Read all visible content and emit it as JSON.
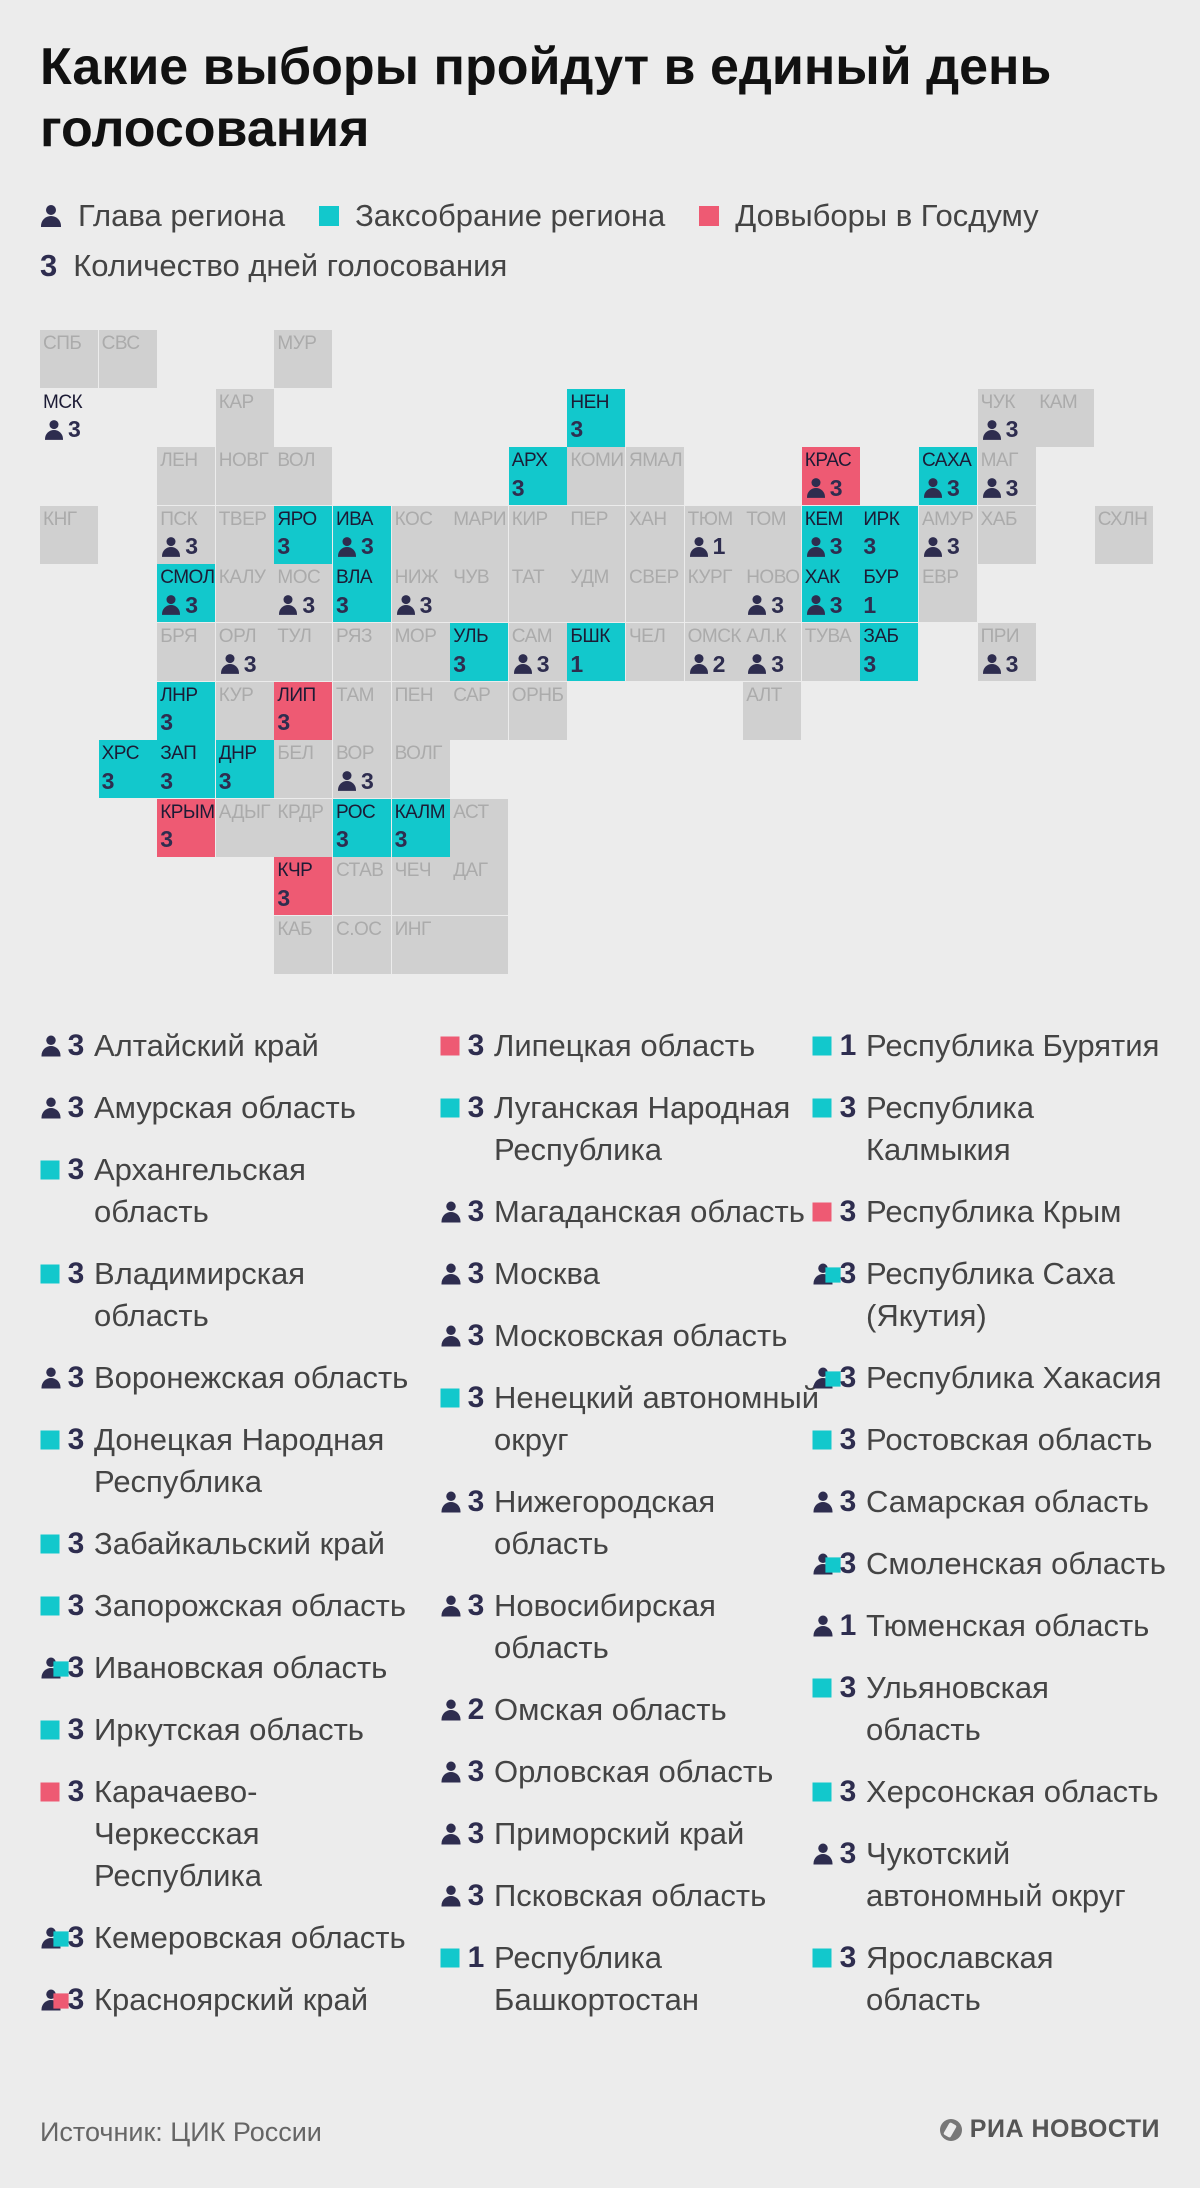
{
  "title": "Какие выборы пройдут в единый день голосования",
  "legend": {
    "head": "Глава региона",
    "assembly": "Заксобрание региона",
    "duma": "Довыборы в Госдуму",
    "days_symbol": "3",
    "days": "Количество дней голосования"
  },
  "colors": {
    "assembly": "#12c8cc",
    "duma": "#ee5a73",
    "grey": "#d0d0d0",
    "dark": "#2e2d4f"
  },
  "map_cells": [
    {
      "col": 0,
      "row": 0,
      "abbr": "СПБ",
      "type": "grey"
    },
    {
      "col": 1,
      "row": 0,
      "abbr": "СВС",
      "type": "grey"
    },
    {
      "col": 4,
      "row": 0,
      "abbr": "МУР",
      "type": "grey"
    },
    {
      "col": 0,
      "row": 1,
      "abbr": "МСК",
      "type": "none",
      "head": true,
      "days": "3"
    },
    {
      "col": 3,
      "row": 1,
      "abbr": "КАР",
      "type": "grey"
    },
    {
      "col": 9,
      "row": 1,
      "abbr": "НЕН",
      "type": "teal",
      "days": "3"
    },
    {
      "col": 16,
      "row": 1,
      "abbr": "ЧУК",
      "type": "grey",
      "head": true,
      "days": "3"
    },
    {
      "col": 17,
      "row": 1,
      "abbr": "КАМ",
      "type": "grey"
    },
    {
      "col": 2,
      "row": 2,
      "abbr": "ЛЕН",
      "type": "grey"
    },
    {
      "col": 3,
      "row": 2,
      "abbr": "НОВГ",
      "type": "grey"
    },
    {
      "col": 4,
      "row": 2,
      "abbr": "ВОЛ",
      "type": "grey"
    },
    {
      "col": 8,
      "row": 2,
      "abbr": "АРХ",
      "type": "teal",
      "days": "3"
    },
    {
      "col": 9,
      "row": 2,
      "abbr": "КОМИ",
      "type": "grey"
    },
    {
      "col": 10,
      "row": 2,
      "abbr": "ЯМАЛ",
      "type": "grey"
    },
    {
      "col": 13,
      "row": 2,
      "abbr": "КРАС",
      "type": "red",
      "head": true,
      "days": "3"
    },
    {
      "col": 15,
      "row": 2,
      "abbr": "САХА",
      "type": "teal",
      "head": true,
      "days": "3"
    },
    {
      "col": 16,
      "row": 2,
      "abbr": "МАГ",
      "type": "grey",
      "head": true,
      "days": "3"
    },
    {
      "col": 0,
      "row": 3,
      "abbr": "КНГ",
      "type": "grey"
    },
    {
      "col": 2,
      "row": 3,
      "abbr": "ПСК",
      "type": "grey",
      "head": true,
      "days": "3"
    },
    {
      "col": 3,
      "row": 3,
      "abbr": "ТВЕР",
      "type": "grey"
    },
    {
      "col": 4,
      "row": 3,
      "abbr": "ЯРО",
      "type": "teal",
      "days": "3"
    },
    {
      "col": 5,
      "row": 3,
      "abbr": "ИВА",
      "type": "teal",
      "head": true,
      "days": "3"
    },
    {
      "col": 6,
      "row": 3,
      "abbr": "КОС",
      "type": "grey"
    },
    {
      "col": 7,
      "row": 3,
      "abbr": "МАРИ",
      "type": "grey"
    },
    {
      "col": 8,
      "row": 3,
      "abbr": "КИР",
      "type": "grey"
    },
    {
      "col": 9,
      "row": 3,
      "abbr": "ПЕР",
      "type": "grey"
    },
    {
      "col": 10,
      "row": 3,
      "abbr": "ХАН",
      "type": "grey"
    },
    {
      "col": 11,
      "row": 3,
      "abbr": "ТЮМ",
      "type": "grey",
      "head": true,
      "days": "1"
    },
    {
      "col": 12,
      "row": 3,
      "abbr": "ТОМ",
      "type": "grey"
    },
    {
      "col": 13,
      "row": 3,
      "abbr": "КЕМ",
      "type": "teal",
      "head": true,
      "days": "3"
    },
    {
      "col": 14,
      "row": 3,
      "abbr": "ИРК",
      "type": "teal",
      "days": "3"
    },
    {
      "col": 15,
      "row": 3,
      "abbr": "АМУР",
      "type": "grey",
      "head": true,
      "days": "3"
    },
    {
      "col": 16,
      "row": 3,
      "abbr": "ХАБ",
      "type": "grey"
    },
    {
      "col": 18,
      "row": 3,
      "abbr": "СХЛН",
      "type": "grey"
    },
    {
      "col": 2,
      "row": 4,
      "abbr": "СМОЛ",
      "type": "teal",
      "head": true,
      "days": "3"
    },
    {
      "col": 3,
      "row": 4,
      "abbr": "КАЛУ",
      "type": "grey"
    },
    {
      "col": 4,
      "row": 4,
      "abbr": "МОС",
      "type": "grey",
      "head": true,
      "days": "3"
    },
    {
      "col": 5,
      "row": 4,
      "abbr": "ВЛА",
      "type": "teal",
      "days": "3"
    },
    {
      "col": 6,
      "row": 4,
      "abbr": "НИЖ",
      "type": "grey",
      "head": true,
      "days": "3"
    },
    {
      "col": 7,
      "row": 4,
      "abbr": "ЧУВ",
      "type": "grey"
    },
    {
      "col": 8,
      "row": 4,
      "abbr": "ТАТ",
      "type": "grey"
    },
    {
      "col": 9,
      "row": 4,
      "abbr": "УДМ",
      "type": "grey"
    },
    {
      "col": 10,
      "row": 4,
      "abbr": "СВЕР",
      "type": "grey"
    },
    {
      "col": 11,
      "row": 4,
      "abbr": "КУРГ",
      "type": "grey"
    },
    {
      "col": 12,
      "row": 4,
      "abbr": "НОВО",
      "type": "grey",
      "head": true,
      "days": "3"
    },
    {
      "col": 13,
      "row": 4,
      "abbr": "ХАК",
      "type": "teal",
      "head": true,
      "days": "3"
    },
    {
      "col": 14,
      "row": 4,
      "abbr": "БУР",
      "type": "teal",
      "days": "1"
    },
    {
      "col": 15,
      "row": 4,
      "abbr": "ЕВР",
      "type": "grey"
    },
    {
      "col": 2,
      "row": 5,
      "abbr": "БРЯ",
      "type": "grey"
    },
    {
      "col": 3,
      "row": 5,
      "abbr": "ОРЛ",
      "type": "grey",
      "head": true,
      "days": "3"
    },
    {
      "col": 4,
      "row": 5,
      "abbr": "ТУЛ",
      "type": "grey"
    },
    {
      "col": 5,
      "row": 5,
      "abbr": "РЯЗ",
      "type": "grey"
    },
    {
      "col": 6,
      "row": 5,
      "abbr": "МОР",
      "type": "grey"
    },
    {
      "col": 7,
      "row": 5,
      "abbr": "УЛЬ",
      "type": "teal",
      "days": "3"
    },
    {
      "col": 8,
      "row": 5,
      "abbr": "САМ",
      "type": "grey",
      "head": true,
      "days": "3"
    },
    {
      "col": 9,
      "row": 5,
      "abbr": "БШК",
      "type": "teal",
      "days": "1"
    },
    {
      "col": 10,
      "row": 5,
      "abbr": "ЧЕЛ",
      "type": "grey"
    },
    {
      "col": 11,
      "row": 5,
      "abbr": "ОМСК",
      "type": "grey",
      "head": true,
      "days": "2"
    },
    {
      "col": 12,
      "row": 5,
      "abbr": "АЛ.К",
      "type": "grey",
      "head": true,
      "days": "3"
    },
    {
      "col": 13,
      "row": 5,
      "abbr": "ТУВА",
      "type": "grey"
    },
    {
      "col": 14,
      "row": 5,
      "abbr": "ЗАБ",
      "type": "teal",
      "days": "3"
    },
    {
      "col": 16,
      "row": 5,
      "abbr": "ПРИ",
      "type": "grey",
      "head": true,
      "days": "3"
    },
    {
      "col": 2,
      "row": 6,
      "abbr": "ЛНР",
      "type": "teal",
      "days": "3"
    },
    {
      "col": 3,
      "row": 6,
      "abbr": "КУР",
      "type": "grey"
    },
    {
      "col": 4,
      "row": 6,
      "abbr": "ЛИП",
      "type": "red",
      "days": "3"
    },
    {
      "col": 5,
      "row": 6,
      "abbr": "ТАМ",
      "type": "grey"
    },
    {
      "col": 6,
      "row": 6,
      "abbr": "ПЕН",
      "type": "grey"
    },
    {
      "col": 7,
      "row": 6,
      "abbr": "САР",
      "type": "grey"
    },
    {
      "col": 8,
      "row": 6,
      "abbr": "ОРНБ",
      "type": "grey"
    },
    {
      "col": 12,
      "row": 6,
      "abbr": "АЛТ",
      "type": "grey"
    },
    {
      "col": 1,
      "row": 7,
      "abbr": "ХРС",
      "type": "teal",
      "days": "3"
    },
    {
      "col": 2,
      "row": 7,
      "abbr": "ЗАП",
      "type": "teal",
      "days": "3"
    },
    {
      "col": 3,
      "row": 7,
      "abbr": "ДНР",
      "type": "teal",
      "days": "3"
    },
    {
      "col": 4,
      "row": 7,
      "abbr": "БЕЛ",
      "type": "grey"
    },
    {
      "col": 5,
      "row": 7,
      "abbr": "ВОР",
      "type": "grey",
      "head": true,
      "days": "3"
    },
    {
      "col": 6,
      "row": 7,
      "abbr": "ВОЛГ",
      "type": "grey"
    },
    {
      "col": 2,
      "row": 8,
      "abbr": "КРЫМ",
      "type": "red",
      "days": "3"
    },
    {
      "col": 3,
      "row": 8,
      "abbr": "АДЫГ",
      "type": "grey"
    },
    {
      "col": 4,
      "row": 8,
      "abbr": "КРДР",
      "type": "grey"
    },
    {
      "col": 5,
      "row": 8,
      "abbr": "РОС",
      "type": "teal",
      "days": "3"
    },
    {
      "col": 6,
      "row": 8,
      "abbr": "КАЛМ",
      "type": "teal",
      "days": "3"
    },
    {
      "col": 7,
      "row": 8,
      "abbr": "АСТ",
      "type": "grey"
    },
    {
      "col": 4,
      "row": 9,
      "abbr": "КЧР",
      "type": "red",
      "days": "3"
    },
    {
      "col": 5,
      "row": 9,
      "abbr": "СТАВ",
      "type": "grey"
    },
    {
      "col": 6,
      "row": 9,
      "abbr": "ЧЕЧ",
      "type": "grey"
    },
    {
      "col": 7,
      "row": 9,
      "abbr": "ДАГ",
      "type": "grey"
    },
    {
      "col": 4,
      "row": 10,
      "abbr": "КАБ",
      "type": "grey"
    },
    {
      "col": 5,
      "row": 10,
      "abbr": "С.ОС",
      "type": "grey"
    },
    {
      "col": 6,
      "row": 10,
      "abbr": "ИНГ",
      "type": "grey"
    },
    {
      "col": 7,
      "row": 10,
      "abbr": "",
      "type": "grey"
    }
  ],
  "list_columns": [
    [
      {
        "name": "Алтайский край",
        "days": "3",
        "head": true
      },
      {
        "name": "Амурская область",
        "days": "3",
        "head": true
      },
      {
        "name": "Архангельская область",
        "days": "3",
        "assembly": true
      },
      {
        "name": "Владимирская область",
        "days": "3",
        "assembly": true
      },
      {
        "name": "Воронежская область",
        "days": "3",
        "head": true
      },
      {
        "name": "Донецкая Народная Республика",
        "days": "3",
        "assembly": true
      },
      {
        "name": "Забайкальский край",
        "days": "3",
        "assembly": true
      },
      {
        "name": "Запорожская область",
        "days": "3",
        "assembly": true
      },
      {
        "name": "Ивановская область",
        "days": "3",
        "head": true,
        "assembly": true
      },
      {
        "name": "Иркутская область",
        "days": "3",
        "assembly": true
      },
      {
        "name": "Карачаево-Черкесская Республика",
        "days": "3",
        "duma": true
      },
      {
        "name": "Кемеровская область",
        "days": "3",
        "head": true,
        "assembly": true
      },
      {
        "name": "Красноярский край",
        "days": "3",
        "head": true,
        "duma": true
      }
    ],
    [
      {
        "name": "Липецкая область",
        "days": "3",
        "duma": true
      },
      {
        "name": "Луганская Народная Республика",
        "days": "3",
        "assembly": true
      },
      {
        "name": "Магаданская область",
        "days": "3",
        "head": true
      },
      {
        "name": "Москва",
        "days": "3",
        "head": true
      },
      {
        "name": "Московская область",
        "days": "3",
        "head": true
      },
      {
        "name": "Ненецкий автономный округ",
        "days": "3",
        "assembly": true
      },
      {
        "name": "Нижегородская область",
        "days": "3",
        "head": true
      },
      {
        "name": "Новосибирская область",
        "days": "3",
        "head": true
      },
      {
        "name": "Омская область",
        "days": "2",
        "head": true
      },
      {
        "name": "Орловская область",
        "days": "3",
        "head": true
      },
      {
        "name": "Приморский край",
        "days": "3",
        "head": true
      },
      {
        "name": "Псковская область",
        "days": "3",
        "head": true
      },
      {
        "name": "Республика Башкортостан",
        "days": "1",
        "assembly": true
      }
    ],
    [
      {
        "name": "Республика Бурятия",
        "days": "1",
        "assembly": true
      },
      {
        "name": "Республика Калмыкия",
        "days": "3",
        "assembly": true
      },
      {
        "name": "Республика Крым",
        "days": "3",
        "duma": true
      },
      {
        "name": "Республика Саха (Якутия)",
        "days": "3",
        "head": true,
        "assembly": true
      },
      {
        "name": "Республика Хакасия",
        "days": "3",
        "head": true,
        "assembly": true
      },
      {
        "name": "Ростовская область",
        "days": "3",
        "assembly": true
      },
      {
        "name": "Самарская область",
        "days": "3",
        "head": true
      },
      {
        "name": "Смоленская область",
        "days": "3",
        "head": true,
        "assembly": true
      },
      {
        "name": "Тюменская область",
        "days": "1",
        "head": true
      },
      {
        "name": "Ульяновская область",
        "days": "3",
        "assembly": true
      },
      {
        "name": "Херсонская область",
        "days": "3",
        "assembly": true
      },
      {
        "name": "Чукотский автономный округ",
        "days": "3",
        "head": true
      },
      {
        "name": "Ярославская область",
        "days": "3",
        "assembly": true
      }
    ]
  ],
  "source": "Источник: ЦИК России",
  "logo_text": "РИА НОВОСТИ"
}
